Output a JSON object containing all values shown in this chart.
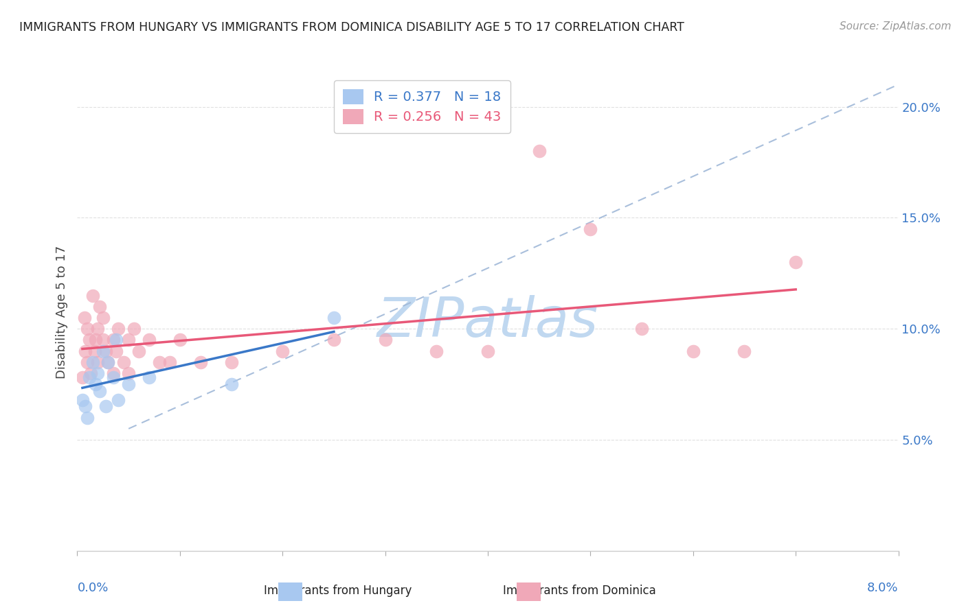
{
  "title": "IMMIGRANTS FROM HUNGARY VS IMMIGRANTS FROM DOMINICA DISABILITY AGE 5 TO 17 CORRELATION CHART",
  "source": "Source: ZipAtlas.com",
  "ylabel": "Disability Age 5 to 17",
  "xlim": [
    0.0,
    8.0
  ],
  "ylim": [
    0.0,
    21.5
  ],
  "ytick_values": [
    5.0,
    10.0,
    15.0,
    20.0
  ],
  "ytick_labels": [
    "5.0%",
    "10.0%",
    "15.0%",
    "20.0%"
  ],
  "legend_label_hungary": "R = 0.377   N = 18",
  "legend_label_dominica": "R = 0.256   N = 43",
  "hungary_color": "#a8c8f0",
  "dominica_color": "#f0a8b8",
  "hungary_line_color": "#3a78c8",
  "dominica_line_color": "#e85878",
  "ref_line_color": "#a0b8d8",
  "ytick_color": "#3a78c8",
  "xlabel_color": "#3a78c8",
  "background_color": "#ffffff",
  "grid_color": "#e0e0e0",
  "watermark_color": "#c0d8f0",
  "hungary_points": [
    [
      0.05,
      6.8
    ],
    [
      0.08,
      6.5
    ],
    [
      0.1,
      6.0
    ],
    [
      0.12,
      7.8
    ],
    [
      0.15,
      8.5
    ],
    [
      0.18,
      7.5
    ],
    [
      0.2,
      8.0
    ],
    [
      0.22,
      7.2
    ],
    [
      0.25,
      9.0
    ],
    [
      0.28,
      6.5
    ],
    [
      0.3,
      8.5
    ],
    [
      0.35,
      7.8
    ],
    [
      0.38,
      9.5
    ],
    [
      0.4,
      6.8
    ],
    [
      0.5,
      7.5
    ],
    [
      0.7,
      7.8
    ],
    [
      1.5,
      7.5
    ],
    [
      2.5,
      10.5
    ]
  ],
  "dominica_points": [
    [
      0.05,
      7.8
    ],
    [
      0.07,
      10.5
    ],
    [
      0.08,
      9.0
    ],
    [
      0.1,
      8.5
    ],
    [
      0.1,
      10.0
    ],
    [
      0.12,
      9.5
    ],
    [
      0.13,
      8.0
    ],
    [
      0.15,
      11.5
    ],
    [
      0.17,
      9.0
    ],
    [
      0.18,
      9.5
    ],
    [
      0.2,
      10.0
    ],
    [
      0.2,
      8.5
    ],
    [
      0.22,
      11.0
    ],
    [
      0.25,
      9.5
    ],
    [
      0.25,
      10.5
    ],
    [
      0.28,
      9.0
    ],
    [
      0.3,
      8.5
    ],
    [
      0.35,
      9.5
    ],
    [
      0.35,
      8.0
    ],
    [
      0.38,
      9.0
    ],
    [
      0.4,
      10.0
    ],
    [
      0.45,
      8.5
    ],
    [
      0.5,
      9.5
    ],
    [
      0.5,
      8.0
    ],
    [
      0.55,
      10.0
    ],
    [
      0.6,
      9.0
    ],
    [
      0.7,
      9.5
    ],
    [
      0.8,
      8.5
    ],
    [
      0.9,
      8.5
    ],
    [
      1.0,
      9.5
    ],
    [
      1.2,
      8.5
    ],
    [
      1.5,
      8.5
    ],
    [
      2.0,
      9.0
    ],
    [
      2.5,
      9.5
    ],
    [
      3.0,
      9.5
    ],
    [
      3.5,
      9.0
    ],
    [
      4.0,
      9.0
    ],
    [
      4.5,
      18.0
    ],
    [
      5.0,
      14.5
    ],
    [
      5.5,
      10.0
    ],
    [
      6.0,
      9.0
    ],
    [
      6.5,
      9.0
    ],
    [
      7.0,
      13.0
    ]
  ],
  "ref_line_x": [
    0.5,
    8.0
  ],
  "ref_line_y": [
    5.5,
    21.0
  ]
}
